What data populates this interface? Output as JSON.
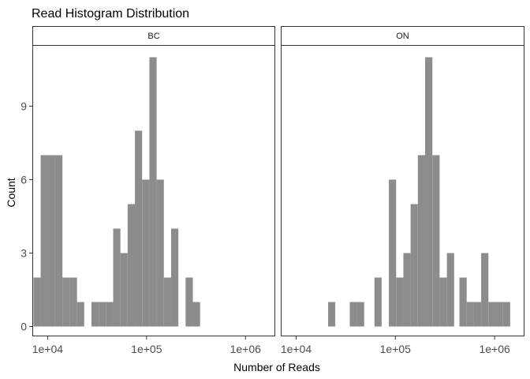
{
  "chart_data": {
    "type": "bar",
    "title": "Read Histogram Distribution",
    "xlabel": "Number of Reads",
    "ylabel": "Count",
    "x_scale": "log10",
    "xlim": [
      7000,
      2000000
    ],
    "ylim": [
      0,
      11.5
    ],
    "bin_width_log10": 0.0735,
    "x_ticks": [
      10000,
      100000,
      1000000
    ],
    "x_tick_labels": [
      "1e+04",
      "1e+05",
      "1e+06"
    ],
    "y_ticks": [
      0,
      3,
      6,
      9
    ],
    "y_tick_labels": [
      "0",
      "3",
      "6",
      "9"
    ],
    "grid": false,
    "bar_color": "#8c8c8c",
    "panels": [
      {
        "name": "BC",
        "bins": [
          {
            "x0": 7200,
            "x1": 8500,
            "count": 2
          },
          {
            "x0": 8500,
            "x1": 10100,
            "count": 7
          },
          {
            "x0": 10100,
            "x1": 11900,
            "count": 7
          },
          {
            "x0": 11900,
            "x1": 14100,
            "count": 7
          },
          {
            "x0": 14100,
            "x1": 16700,
            "count": 2
          },
          {
            "x0": 16700,
            "x1": 19800,
            "count": 2
          },
          {
            "x0": 19800,
            "x1": 23400,
            "count": 1
          },
          {
            "x0": 27700,
            "x1": 32800,
            "count": 1
          },
          {
            "x0": 32800,
            "x1": 38800,
            "count": 1
          },
          {
            "x0": 38800,
            "x1": 46000,
            "count": 1
          },
          {
            "x0": 46000,
            "x1": 54400,
            "count": 4
          },
          {
            "x0": 54400,
            "x1": 64400,
            "count": 3
          },
          {
            "x0": 64400,
            "x1": 76200,
            "count": 5
          },
          {
            "x0": 76200,
            "x1": 90200,
            "count": 8
          },
          {
            "x0": 90200,
            "x1": 106800,
            "count": 6
          },
          {
            "x0": 106800,
            "x1": 126400,
            "count": 11
          },
          {
            "x0": 126400,
            "x1": 149600,
            "count": 6
          },
          {
            "x0": 149600,
            "x1": 177100,
            "count": 2
          },
          {
            "x0": 177100,
            "x1": 209700,
            "count": 4
          },
          {
            "x0": 248200,
            "x1": 293800,
            "count": 2
          },
          {
            "x0": 293800,
            "x1": 347800,
            "count": 1
          }
        ]
      },
      {
        "name": "ON",
        "bins": [
          {
            "x0": 21000,
            "x1": 24800,
            "count": 1
          },
          {
            "x0": 34700,
            "x1": 41000,
            "count": 1
          },
          {
            "x0": 41000,
            "x1": 48500,
            "count": 1
          },
          {
            "x0": 61500,
            "x1": 72700,
            "count": 2
          },
          {
            "x0": 86000,
            "x1": 101800,
            "count": 6
          },
          {
            "x0": 101800,
            "x1": 120400,
            "count": 2
          },
          {
            "x0": 120400,
            "x1": 142400,
            "count": 3
          },
          {
            "x0": 142400,
            "x1": 168500,
            "count": 5
          },
          {
            "x0": 168500,
            "x1": 199400,
            "count": 7
          },
          {
            "x0": 199400,
            "x1": 236000,
            "count": 11
          },
          {
            "x0": 236000,
            "x1": 279200,
            "count": 7
          },
          {
            "x0": 279200,
            "x1": 330400,
            "count": 2
          },
          {
            "x0": 330400,
            "x1": 391000,
            "count": 3
          },
          {
            "x0": 442000,
            "x1": 523000,
            "count": 2
          },
          {
            "x0": 523000,
            "x1": 619000,
            "count": 1
          },
          {
            "x0": 619000,
            "x1": 732000,
            "count": 1
          },
          {
            "x0": 732000,
            "x1": 866000,
            "count": 3
          },
          {
            "x0": 866000,
            "x1": 1025000,
            "count": 1
          },
          {
            "x0": 1025000,
            "x1": 1213000,
            "count": 1
          },
          {
            "x0": 1213000,
            "x1": 1435000,
            "count": 1
          }
        ]
      }
    ]
  }
}
